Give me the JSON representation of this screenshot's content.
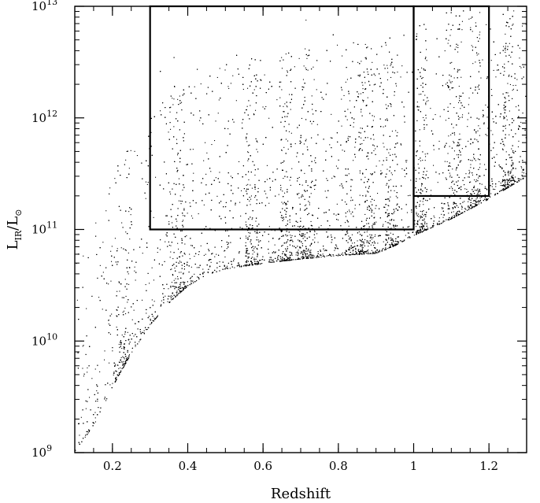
{
  "chart_data": {
    "type": "scatter",
    "title": "",
    "xlabel": "Redshift",
    "ylabel": "L_IR/L_⊙",
    "ylabel_parts": {
      "main": "L",
      "sub": "IR",
      "sep": "/L",
      "sun_sub": "⊙"
    },
    "xlim": [
      0.1,
      1.3
    ],
    "ylim_log10": [
      9,
      13
    ],
    "yscale": "log",
    "x_ticks": [
      {
        "value": 0.2,
        "label": "0.2"
      },
      {
        "value": 0.4,
        "label": "0.4"
      },
      {
        "value": 0.6,
        "label": "0.6"
      },
      {
        "value": 0.8,
        "label": "0.8"
      },
      {
        "value": 1.0,
        "label": "1"
      },
      {
        "value": 1.2,
        "label": "1.2"
      }
    ],
    "y_ticks": [
      {
        "exp": 9,
        "base": "10",
        "power": "9"
      },
      {
        "exp": 10,
        "base": "10",
        "power": "10"
      },
      {
        "exp": 11,
        "base": "10",
        "power": "11"
      },
      {
        "exp": 12,
        "base": "10",
        "power": "12"
      },
      {
        "exp": 13,
        "base": "10",
        "power": "13"
      }
    ],
    "lower_envelope": [
      {
        "x": 0.1,
        "log_y": 9.02
      },
      {
        "x": 0.15,
        "log_y": 9.25
      },
      {
        "x": 0.2,
        "log_y": 9.6
      },
      {
        "x": 0.25,
        "log_y": 9.9
      },
      {
        "x": 0.3,
        "log_y": 10.15
      },
      {
        "x": 0.35,
        "log_y": 10.35
      },
      {
        "x": 0.4,
        "log_y": 10.5
      },
      {
        "x": 0.45,
        "log_y": 10.6
      },
      {
        "x": 0.5,
        "log_y": 10.65
      },
      {
        "x": 0.6,
        "log_y": 10.7
      },
      {
        "x": 0.7,
        "log_y": 10.74
      },
      {
        "x": 0.8,
        "log_y": 10.77
      },
      {
        "x": 0.9,
        "log_y": 10.79
      },
      {
        "x": 0.95,
        "log_y": 10.86
      },
      {
        "x": 1.0,
        "log_y": 10.95
      },
      {
        "x": 1.1,
        "log_y": 11.1
      },
      {
        "x": 1.2,
        "log_y": 11.28
      },
      {
        "x": 1.3,
        "log_y": 11.48
      }
    ],
    "density_clusters": [
      {
        "x": 0.225,
        "weight": 1.6
      },
      {
        "x": 0.37,
        "weight": 1.8
      },
      {
        "x": 0.57,
        "weight": 1.4
      },
      {
        "x": 0.66,
        "weight": 1.4
      },
      {
        "x": 0.71,
        "weight": 1.6
      },
      {
        "x": 0.84,
        "weight": 1.9
      },
      {
        "x": 0.88,
        "weight": 1.4
      },
      {
        "x": 0.94,
        "weight": 1.3
      },
      {
        "x": 1.02,
        "weight": 1.2
      },
      {
        "x": 1.11,
        "weight": 1.6
      },
      {
        "x": 1.16,
        "weight": 1.3
      },
      {
        "x": 1.25,
        "weight": 1.2
      }
    ],
    "point_color": "#000000",
    "boxes": [
      {
        "x0": 0.3,
        "x1": 1.0,
        "log_y0": 11,
        "log_y1": 13
      },
      {
        "x0": 1.0,
        "x1": 1.2,
        "log_y0": 11.3,
        "log_y1": 13
      }
    ],
    "grid": false,
    "legend": "none"
  }
}
